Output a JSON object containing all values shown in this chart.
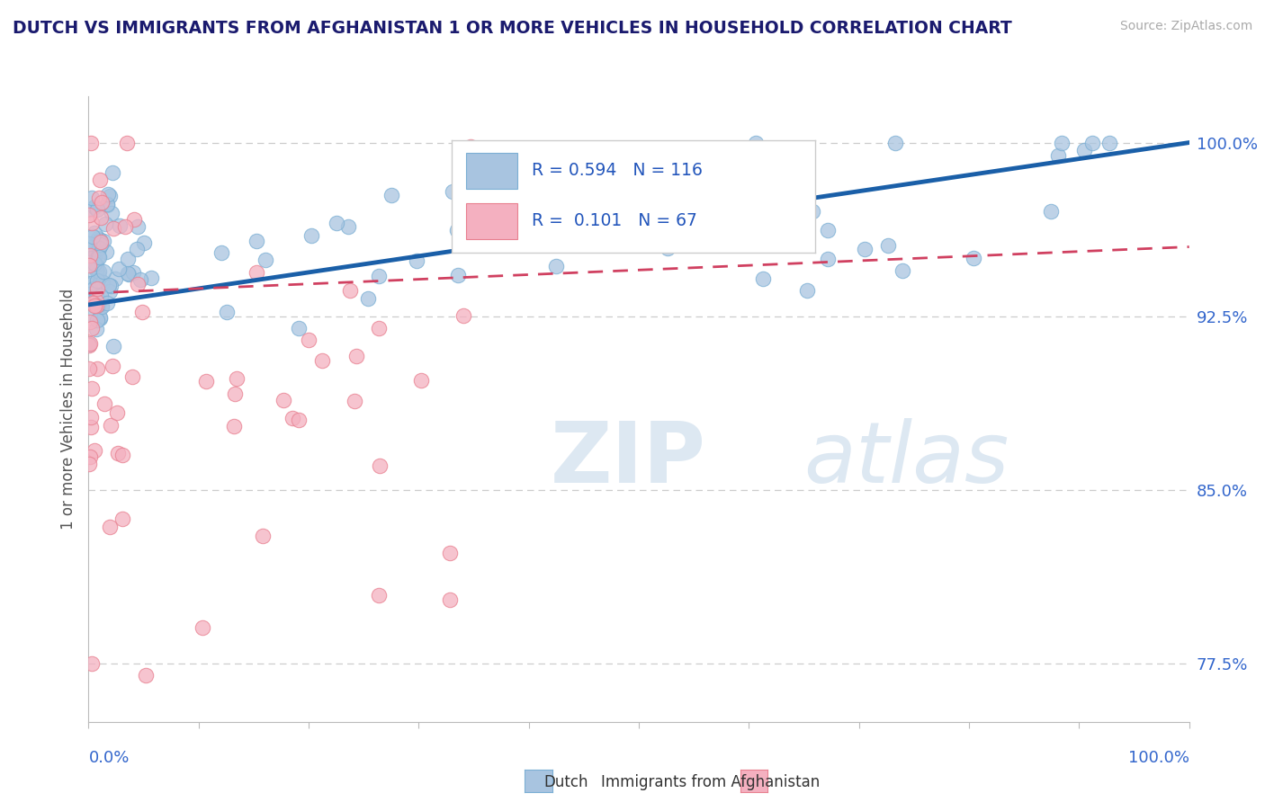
{
  "title": "DUTCH VS IMMIGRANTS FROM AFGHANISTAN 1 OR MORE VEHICLES IN HOUSEHOLD CORRELATION CHART",
  "source": "Source: ZipAtlas.com",
  "ylabel": "1 or more Vehicles in Household",
  "yticks": [
    77.5,
    85.0,
    92.5,
    100.0
  ],
  "legend_dutch_R": "0.594",
  "legend_dutch_N": "116",
  "legend_afghan_R": "0.101",
  "legend_afghan_N": "67",
  "legend_label_dutch": "Dutch",
  "legend_label_afghan": "Immigrants from Afghanistan",
  "dutch_color": "#a8c4e0",
  "dutch_edge": "#7bafd4",
  "afghan_color": "#f4b0c0",
  "afghan_edge": "#e88090",
  "trend_dutch_color": "#1a5fa8",
  "trend_afghan_color": "#d04060",
  "watermark_zip": "ZIP",
  "watermark_atlas": "atlas",
  "background_color": "#ffffff",
  "xlim": [
    0,
    100
  ],
  "ylim": [
    75,
    102
  ],
  "dutch_trend_x0": 0,
  "dutch_trend_y0": 93.0,
  "dutch_trend_x1": 100,
  "dutch_trend_y1": 100.0,
  "afghan_trend_x0": 0,
  "afghan_trend_y0": 93.5,
  "afghan_trend_x1": 100,
  "afghan_trend_y1": 95.5
}
